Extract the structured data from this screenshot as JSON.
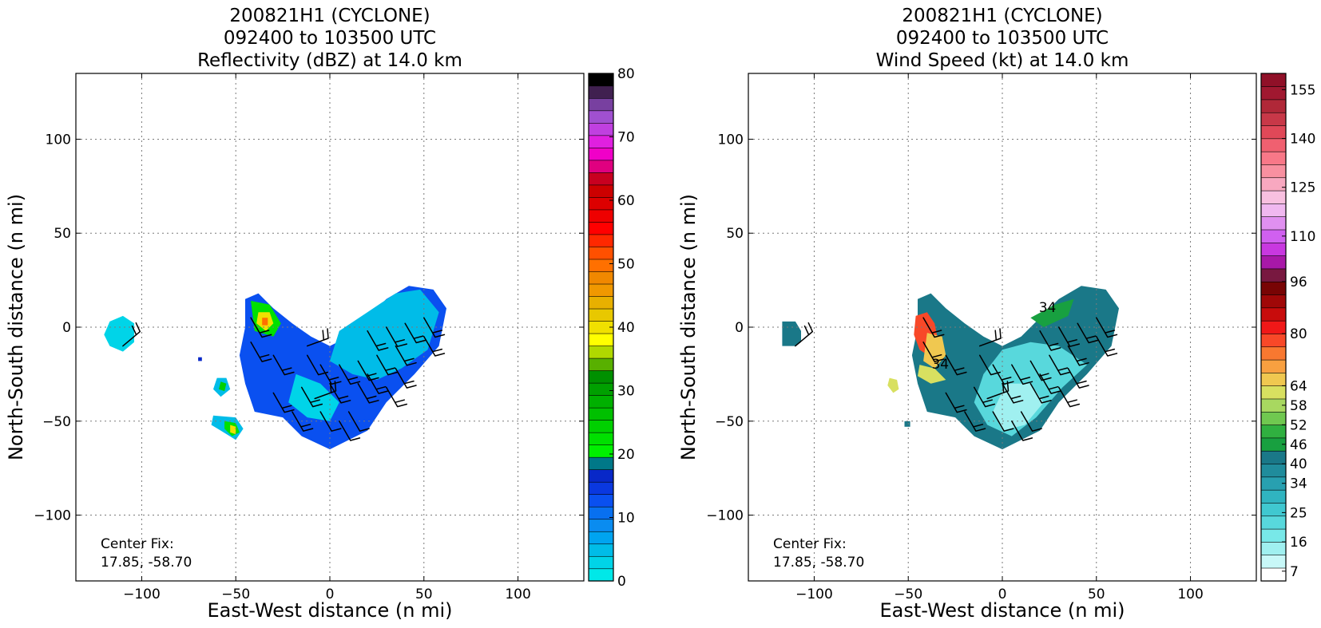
{
  "chart_data": [
    {
      "type": "heatmap",
      "id": "reflectivity",
      "title_lines": [
        "200821H1 (CYCLONE)",
        "092400 to 103500 UTC",
        "Reflectivity (dBZ) at 14.0 km"
      ],
      "xlabel": "East-West distance (n mi)",
      "ylabel": "North-South distance (n mi)",
      "xlim": [
        -135,
        135
      ],
      "ylim": [
        -135,
        135
      ],
      "xticks": [
        -100,
        -50,
        0,
        50,
        100
      ],
      "yticks": [
        -100,
        -50,
        0,
        50,
        100
      ],
      "grid": true,
      "annotation_lines": [
        "Center Fix:",
        "17.85, -58.70"
      ],
      "colorbar": {
        "min": 0,
        "max": 80,
        "ticks": [
          0,
          10,
          20,
          30,
          40,
          50,
          60,
          70,
          80
        ],
        "colors": [
          "#00e8e8",
          "#00d4e8",
          "#00bce8",
          "#00a4f0",
          "#0a8cf0",
          "#0870f0",
          "#0a50f0",
          "#0a38e0",
          "#0828c8",
          "#007888",
          "#00f000",
          "#00e000",
          "#00d000",
          "#00c000",
          "#00b000",
          "#00a000",
          "#009000",
          "#58b000",
          "#b0d800",
          "#ffff00",
          "#f0e000",
          "#e8c800",
          "#e8b000",
          "#f09800",
          "#f08800",
          "#ff7000",
          "#ff5000",
          "#ff2800",
          "#ff0000",
          "#ee0000",
          "#dd0000",
          "#cc0000",
          "#c80020",
          "#e00080",
          "#f000c8",
          "#e020e0",
          "#c040e0",
          "#a050d0",
          "#7840a0",
          "#402050",
          "#000000"
        ]
      },
      "echo_regions": [
        {
          "color": "#0a50f0",
          "points": [
            [
              -45,
              15
            ],
            [
              -38,
              18
            ],
            [
              -30,
              10
            ],
            [
              -20,
              2
            ],
            [
              -10,
              -5
            ],
            [
              0,
              -10
            ],
            [
              10,
              -5
            ],
            [
              20,
              5
            ],
            [
              30,
              15
            ],
            [
              42,
              22
            ],
            [
              55,
              20
            ],
            [
              62,
              10
            ],
            [
              58,
              -10
            ],
            [
              45,
              -25
            ],
            [
              30,
              -40
            ],
            [
              20,
              -55
            ],
            [
              0,
              -65
            ],
            [
              -15,
              -58
            ],
            [
              -25,
              -48
            ],
            [
              -40,
              -45
            ],
            [
              -45,
              -30
            ],
            [
              -48,
              -15
            ],
            [
              -45,
              0
            ]
          ]
        },
        {
          "color": "#00bce8",
          "points": [
            [
              5,
              -2
            ],
            [
              20,
              8
            ],
            [
              35,
              18
            ],
            [
              48,
              20
            ],
            [
              58,
              8
            ],
            [
              52,
              -12
            ],
            [
              38,
              -22
            ],
            [
              25,
              -28
            ],
            [
              12,
              -25
            ],
            [
              0,
              -18
            ]
          ]
        },
        {
          "color": "#00d4e8",
          "points": [
            [
              -18,
              -25
            ],
            [
              -5,
              -30
            ],
            [
              5,
              -40
            ],
            [
              0,
              -50
            ],
            [
              -12,
              -48
            ],
            [
              -22,
              -40
            ]
          ]
        },
        {
          "color": "#00d4e8",
          "points": [
            [
              -117,
              3
            ],
            [
              -110,
              6
            ],
            [
              -104,
              2
            ],
            [
              -104,
              -8
            ],
            [
              -110,
              -13
            ],
            [
              -117,
              -10
            ],
            [
              -120,
              -4
            ]
          ]
        },
        {
          "color": "#00bce8",
          "points": [
            [
              -60,
              -27
            ],
            [
              -55,
              -27
            ],
            [
              -53,
              -33
            ],
            [
              -58,
              -37
            ],
            [
              -62,
              -33
            ]
          ]
        },
        {
          "color": "#00d000",
          "points": [
            [
              -58,
              -29
            ],
            [
              -55,
              -30
            ],
            [
              -56,
              -34
            ],
            [
              -59,
              -33
            ]
          ]
        },
        {
          "color": "#00bce8",
          "points": [
            [
              -62,
              -47
            ],
            [
              -50,
              -48
            ],
            [
              -46,
              -54
            ],
            [
              -50,
              -60
            ],
            [
              -58,
              -55
            ],
            [
              -63,
              -52
            ]
          ]
        },
        {
          "color": "#00e000",
          "points": [
            [
              -56,
              -50
            ],
            [
              -50,
              -51
            ],
            [
              -48,
              -56
            ],
            [
              -52,
              -58
            ],
            [
              -56,
              -54
            ]
          ]
        },
        {
          "color": "#f0e000",
          "points": [
            [
              -53,
              -52
            ],
            [
              -50,
              -53
            ],
            [
              -50,
              -57
            ],
            [
              -53,
              -56
            ]
          ]
        },
        {
          "color": "#00e000",
          "points": [
            [
              -42,
              14
            ],
            [
              -32,
              12
            ],
            [
              -26,
              2
            ],
            0,
            [
              -30,
              -5
            ],
            [
              -40,
              -2
            ]
          ]
        },
        {
          "color": "#f0e000",
          "points": [
            [
              -38,
              8
            ],
            [
              -32,
              8
            ],
            [
              -30,
              2
            ],
            [
              -34,
              -2
            ],
            [
              -39,
              2
            ]
          ]
        },
        {
          "color": "#ff7000",
          "points": [
            [
              -36,
              5
            ],
            [
              -33,
              5
            ],
            [
              -33,
              1
            ],
            [
              -36,
              1
            ]
          ]
        },
        {
          "color": "#0828c8",
          "points": [
            [
              -70,
              -16
            ],
            [
              -68,
              -16
            ],
            [
              -68,
              -18
            ],
            [
              -70,
              -18
            ]
          ]
        }
      ]
    },
    {
      "type": "heatmap",
      "id": "wind-speed",
      "title_lines": [
        "200821H1 (CYCLONE)",
        "092400 to 103500 UTC",
        "Wind Speed (kt) at 14.0 km"
      ],
      "xlabel": "East-West distance (n mi)",
      "ylabel": "North-South distance (n mi)",
      "xlim": [
        -135,
        135
      ],
      "ylim": [
        -135,
        135
      ],
      "xticks": [
        -100,
        -50,
        0,
        50,
        100
      ],
      "yticks": [
        -100,
        -50,
        0,
        50,
        100
      ],
      "grid": true,
      "annotation_lines": [
        "Center Fix:",
        "17.85, -58.70"
      ],
      "contour_labels": [
        {
          "text": "34",
          "x": 24,
          "y": 8
        },
        {
          "text": "34",
          "x": -33,
          "y": -22
        }
      ],
      "colorbar": {
        "min": 4,
        "max": 160,
        "ticks": [
          7,
          16,
          25,
          34,
          40,
          46,
          52,
          58,
          64,
          80,
          96,
          110,
          125,
          140,
          155
        ],
        "colors": [
          "#ffffff",
          "#c8f8f8",
          "#a0f0f0",
          "#78e8e8",
          "#58d8dc",
          "#40c8d0",
          "#30b4c0",
          "#28a0b0",
          "#208c9c",
          "#1a7888",
          "#18a040",
          "#30b040",
          "#70c850",
          "#a8d860",
          "#d8e060",
          "#f0c850",
          "#f8a040",
          "#f87830",
          "#f84828",
          "#f01818",
          "#c80c0c",
          "#a00808",
          "#780404",
          "#781840",
          "#a818a8",
          "#c838e0",
          "#d060f0",
          "#e090f0",
          "#f0b8f0",
          "#f8c0e0",
          "#f8a8c0",
          "#f890a0",
          "#f87888",
          "#f06070",
          "#e04858",
          "#c83848",
          "#b02838",
          "#a01830",
          "#901028"
        ]
      },
      "wind_regions": [
        {
          "color": "#1a7888",
          "points": [
            [
              -45,
              15
            ],
            [
              -38,
              18
            ],
            [
              -30,
              10
            ],
            [
              -20,
              2
            ],
            [
              -10,
              -5
            ],
            [
              0,
              -10
            ],
            [
              10,
              -5
            ],
            [
              20,
              5
            ],
            [
              30,
              15
            ],
            [
              42,
              22
            ],
            [
              55,
              20
            ],
            [
              62,
              10
            ],
            [
              58,
              -10
            ],
            [
              45,
              -25
            ],
            [
              30,
              -40
            ],
            [
              20,
              -55
            ],
            [
              0,
              -65
            ],
            [
              -15,
              -58
            ],
            [
              -25,
              -48
            ],
            [
              -40,
              -45
            ],
            [
              -45,
              -30
            ],
            [
              -48,
              -15
            ],
            [
              -45,
              0
            ]
          ]
        },
        {
          "color": "#58d8dc",
          "points": [
            [
              0,
              -12
            ],
            [
              15,
              -8
            ],
            [
              30,
              -10
            ],
            [
              45,
              -20
            ],
            [
              32,
              -32
            ],
            [
              18,
              -48
            ],
            [
              5,
              -58
            ],
            [
              -8,
              -52
            ],
            [
              -15,
              -40
            ],
            [
              -10,
              -25
            ]
          ]
        },
        {
          "color": "#a0f0f0",
          "points": [
            [
              2,
              -30
            ],
            [
              15,
              -30
            ],
            [
              22,
              -40
            ],
            [
              12,
              -52
            ],
            [
              0,
              -55
            ],
            [
              -5,
              -45
            ]
          ]
        },
        {
          "color": "#18a040",
          "points": [
            [
              15,
              5
            ],
            [
              28,
              12
            ],
            [
              38,
              15
            ],
            [
              35,
              6
            ],
            [
              22,
              0
            ]
          ]
        },
        {
          "color": "#f84828",
          "points": [
            [
              -46,
              6
            ],
            [
              -40,
              8
            ],
            [
              -36,
              2
            ],
            [
              -34,
              -8
            ],
            [
              -38,
              -16
            ],
            [
              -44,
              -12
            ],
            [
              -47,
              -4
            ]
          ]
        },
        {
          "color": "#f0c850",
          "points": [
            [
              -40,
              -3
            ],
            [
              -32,
              -5
            ],
            [
              -30,
              -15
            ],
            [
              -36,
              -22
            ],
            [
              -42,
              -18
            ]
          ]
        },
        {
          "color": "#d8e060",
          "points": [
            [
              -44,
              -20
            ],
            [
              -36,
              -22
            ],
            [
              -30,
              -28
            ],
            [
              -38,
              -30
            ],
            [
              -45,
              -26
            ]
          ]
        },
        {
          "color": "#1a7888",
          "points": [
            [
              -117,
              3
            ],
            [
              -110,
              3
            ],
            [
              -107,
              -2
            ],
            [
              -107,
              -8
            ],
            [
              -110,
              -10
            ],
            [
              -117,
              -10
            ],
            [
              -117,
              -4
            ]
          ]
        },
        {
          "color": "#d8e060",
          "points": [
            [
              -60,
              -27
            ],
            [
              -56,
              -28
            ],
            [
              -55,
              -33
            ],
            [
              -58,
              -35
            ],
            [
              -61,
              -31
            ]
          ]
        },
        {
          "color": "#1a7888",
          "points": [
            [
              -52,
              -50
            ],
            [
              -49,
              -50
            ],
            [
              -49,
              -53
            ],
            [
              -52,
              -53
            ]
          ]
        }
      ]
    }
  ]
}
